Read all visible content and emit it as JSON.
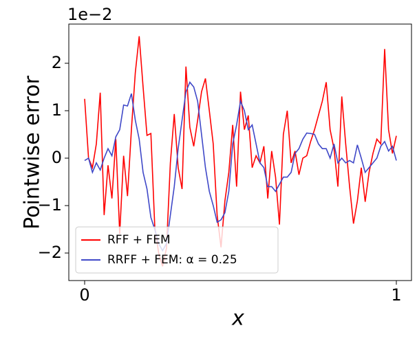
{
  "chart_data": {
    "type": "line",
    "offset_label": "1e−2",
    "xlabel": "x",
    "ylabel": "Pointwise error",
    "x": [
      0,
      0.0125,
      0.025,
      0.0375,
      0.05,
      0.0625,
      0.075,
      0.0875,
      0.1,
      0.1125,
      0.125,
      0.1375,
      0.15,
      0.1625,
      0.175,
      0.1875,
      0.2,
      0.2125,
      0.225,
      0.2375,
      0.25,
      0.2625,
      0.275,
      0.2875,
      0.3,
      0.3125,
      0.325,
      0.3375,
      0.35,
      0.3625,
      0.375,
      0.3875,
      0.4,
      0.4125,
      0.425,
      0.4375,
      0.45,
      0.4625,
      0.475,
      0.4875,
      0.5,
      0.5125,
      0.525,
      0.5375,
      0.55,
      0.5625,
      0.575,
      0.5875,
      0.6,
      0.6125,
      0.625,
      0.6375,
      0.65,
      0.6625,
      0.675,
      0.6875,
      0.7,
      0.7125,
      0.725,
      0.7375,
      0.75,
      0.7625,
      0.775,
      0.7875,
      0.8,
      0.8125,
      0.825,
      0.8375,
      0.85,
      0.8625,
      0.875,
      0.8875,
      0.9,
      0.9125,
      0.925,
      0.9375,
      0.95,
      0.9625,
      0.975,
      0.9875,
      1
    ],
    "series": [
      {
        "name": "RFF + FEM",
        "color": "#ff0000",
        "values": [
          1.25,
          0.0,
          -0.2,
          0.3,
          1.38,
          -1.2,
          -0.15,
          -0.85,
          0.4,
          -1.6,
          0.05,
          -0.8,
          0.6,
          1.8,
          2.57,
          1.5,
          0.48,
          0.52,
          -1.45,
          -2.0,
          -2.28,
          -1.9,
          -0.1,
          0.93,
          -0.2,
          -0.65,
          1.93,
          0.65,
          0.25,
          0.8,
          1.4,
          1.68,
          1.0,
          0.3,
          -1.2,
          -1.88,
          -0.9,
          -0.3,
          0.7,
          -0.6,
          1.4,
          0.6,
          0.9,
          -0.2,
          0.05,
          -0.1,
          0.25,
          -0.85,
          0.15,
          -0.4,
          -1.4,
          0.5,
          1.0,
          -0.1,
          0.15,
          -0.35,
          0.0,
          0.05,
          0.35,
          0.6,
          0.9,
          1.2,
          1.6,
          0.6,
          0.2,
          -0.6,
          1.3,
          0.3,
          -0.6,
          -1.38,
          -0.9,
          -0.2,
          -0.92,
          -0.3,
          0.1,
          0.4,
          0.3,
          2.3,
          0.6,
          0.1,
          0.47
        ]
      },
      {
        "name": "RRFF + FEM: α = 0.25",
        "color": "#3f48c8",
        "values": [
          -0.05,
          0.0,
          -0.3,
          -0.1,
          -0.25,
          0.0,
          0.2,
          0.05,
          0.45,
          0.6,
          1.12,
          1.1,
          1.36,
          0.8,
          0.4,
          -0.3,
          -0.65,
          -1.25,
          -1.5,
          -1.8,
          -1.95,
          -1.8,
          -1.2,
          -0.6,
          0.2,
          0.8,
          1.4,
          1.6,
          1.5,
          1.2,
          0.5,
          -0.2,
          -0.7,
          -1.0,
          -1.35,
          -1.3,
          -1.15,
          -0.7,
          0.3,
          0.7,
          1.2,
          1.0,
          0.6,
          0.7,
          0.3,
          -0.1,
          -0.2,
          -0.6,
          -0.6,
          -0.7,
          -0.55,
          -0.4,
          -0.4,
          -0.3,
          0.1,
          0.2,
          0.4,
          0.53,
          0.52,
          0.5,
          0.3,
          0.2,
          0.2,
          0.0,
          0.3,
          -0.1,
          0.0,
          -0.1,
          -0.05,
          -0.1,
          0.28,
          0.0,
          -0.3,
          -0.2,
          -0.1,
          0.0,
          0.25,
          0.35,
          0.15,
          0.25,
          -0.05
        ]
      }
    ],
    "xlim": [
      -0.0508,
      1.0486
    ],
    "ylim": [
      -2.58,
      2.826
    ],
    "xticks": [
      0,
      1
    ],
    "yticks": [
      {
        "value": -2,
        "label": "−2"
      },
      {
        "value": -1,
        "label": "−1"
      },
      0,
      1,
      2
    ],
    "legend": "lower left"
  }
}
